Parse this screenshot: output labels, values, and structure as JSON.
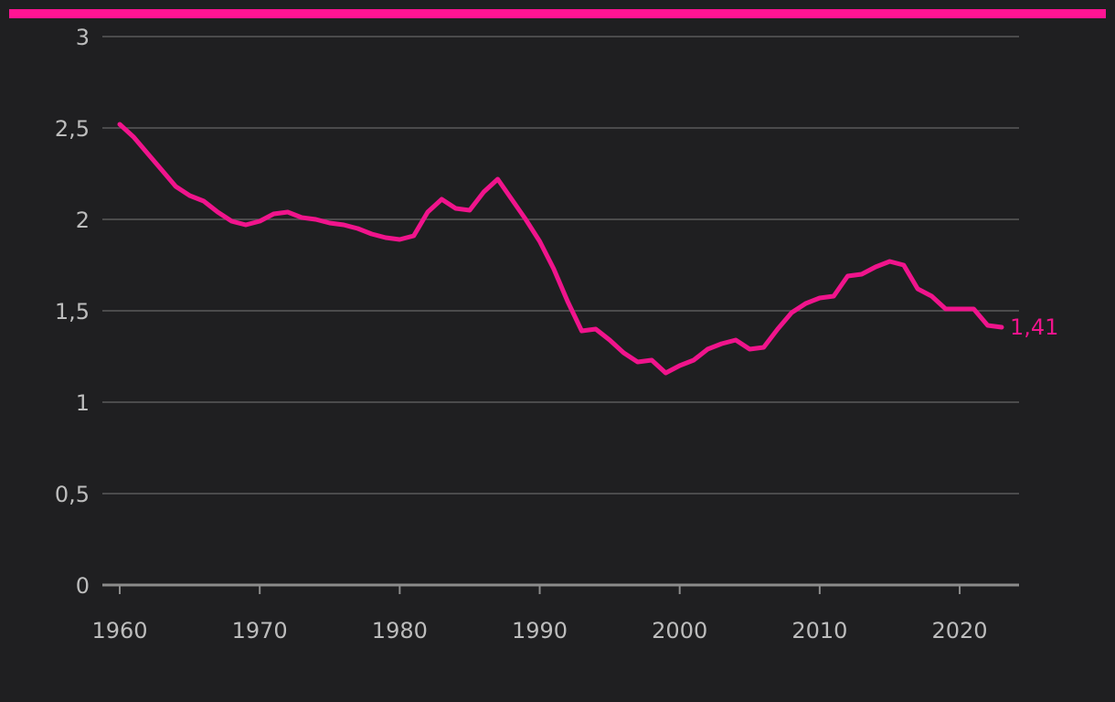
{
  "colors": {
    "background": "#1f1f21",
    "accent": "#ff1493",
    "line": "#f0148c",
    "grid": "#5a5a5a",
    "axis": "#8c8c8c",
    "tick_text": "#bdbdbd"
  },
  "chart_data": {
    "type": "line",
    "title": "",
    "xlabel": "",
    "ylabel": "",
    "xlim": [
      1960,
      2023
    ],
    "ylim": [
      0,
      3
    ],
    "grid": true,
    "y_ticks": [
      0,
      0.5,
      1,
      1.5,
      2,
      2.5,
      3
    ],
    "y_tick_labels": [
      "0",
      "0,5",
      "1",
      "1,5",
      "2",
      "2,5",
      "3"
    ],
    "x_ticks": [
      1960,
      1970,
      1980,
      1990,
      2000,
      2010,
      2020
    ],
    "x_tick_labels": [
      "1960",
      "1970",
      "1980",
      "1990",
      "2000",
      "2010",
      "2020"
    ],
    "end_label": "1,41",
    "series": [
      {
        "x": [
          1960,
          1961,
          1962,
          1963,
          1964,
          1965,
          1966,
          1967,
          1968,
          1969,
          1970,
          1971,
          1972,
          1973,
          1974,
          1975,
          1976,
          1977,
          1978,
          1979,
          1980,
          1981,
          1982,
          1983,
          1984,
          1985,
          1986,
          1987,
          1988,
          1989,
          1990,
          1991,
          1992,
          1993,
          1994,
          1995,
          1996,
          1997,
          1998,
          1999,
          2000,
          2001,
          2002,
          2003,
          2004,
          2005,
          2006,
          2007,
          2008,
          2009,
          2010,
          2011,
          2012,
          2013,
          2014,
          2015,
          2016,
          2017,
          2018,
          2019,
          2020,
          2021,
          2022,
          2023
        ],
        "values": [
          2.52,
          2.45,
          2.36,
          2.27,
          2.18,
          2.13,
          2.1,
          2.04,
          1.99,
          1.97,
          1.99,
          2.03,
          2.04,
          2.01,
          2.0,
          1.98,
          1.97,
          1.95,
          1.92,
          1.9,
          1.89,
          1.91,
          2.04,
          2.11,
          2.06,
          2.05,
          2.15,
          2.22,
          2.11,
          2.0,
          1.88,
          1.73,
          1.55,
          1.39,
          1.4,
          1.34,
          1.27,
          1.22,
          1.23,
          1.16,
          1.2,
          1.23,
          1.29,
          1.32,
          1.34,
          1.29,
          1.3,
          1.4,
          1.49,
          1.54,
          1.57,
          1.58,
          1.69,
          1.7,
          1.74,
          1.77,
          1.75,
          1.62,
          1.58,
          1.51,
          1.51,
          1.51,
          1.42,
          1.41
        ]
      }
    ]
  }
}
